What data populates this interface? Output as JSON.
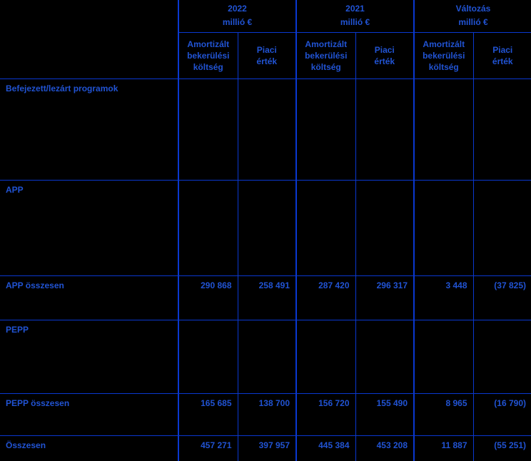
{
  "colors": {
    "background": "#000000",
    "grid_line": "#0a38d0",
    "text": "#2153d3"
  },
  "table": {
    "column_groups": [
      {
        "label": "2022",
        "unit": "millió €"
      },
      {
        "label": "2021",
        "unit": "millió €"
      },
      {
        "label": "Változás",
        "unit": "millió €"
      }
    ],
    "sub_headers": {
      "amortised_cost": "Amortizált\nbekerülési\nköltség",
      "market_value": "Piaci\nérték"
    },
    "rows": [
      {
        "label": "Befejezett/lezárt programok",
        "values": [
          "",
          "",
          "",
          "",
          "",
          ""
        ]
      },
      {
        "label": "APP",
        "values": [
          "",
          "",
          "",
          "",
          "",
          ""
        ]
      },
      {
        "label": "APP összesen",
        "values": [
          "290 868",
          "258 491",
          "287 420",
          "296 317",
          "3 448",
          "(37 825)"
        ]
      },
      {
        "label": "PEPP",
        "values": [
          "",
          "",
          "",
          "",
          "",
          ""
        ]
      },
      {
        "label": "PEPP összesen",
        "values": [
          "165 685",
          "138 700",
          "156 720",
          "155 490",
          "8 965",
          "(16 790)"
        ]
      },
      {
        "label": "Összesen",
        "values": [
          "457 271",
          "397 957",
          "445 384",
          "453 208",
          "11 887",
          "(55 251)"
        ]
      }
    ]
  }
}
